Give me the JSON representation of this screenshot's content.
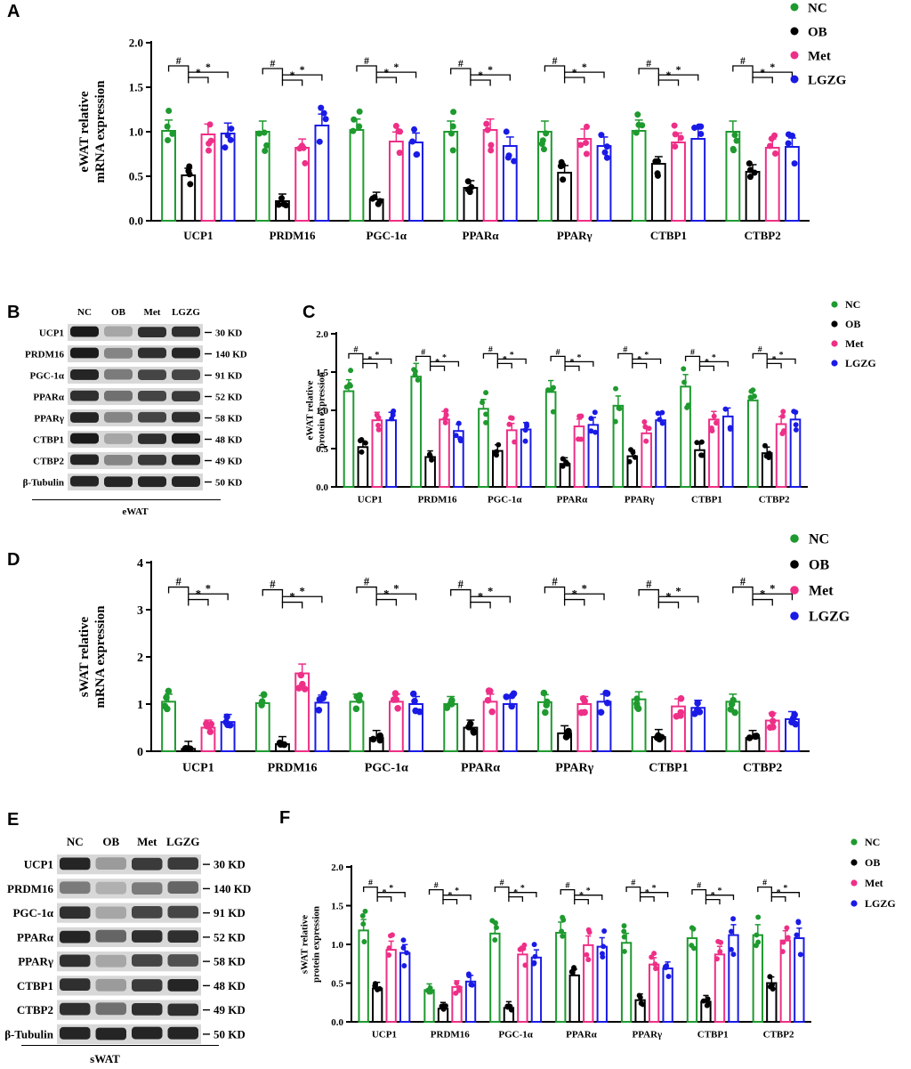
{
  "colors": {
    "NC": "#1e9a2f",
    "OB": "#000000",
    "Met": "#ee2f87",
    "LGZG": "#1a1ae6"
  },
  "legend": [
    "NC",
    "OB",
    "Met",
    "LGZG"
  ],
  "chart_data": [
    {
      "panel": "A",
      "type": "bar",
      "title": "",
      "ylabel": "eWAT relative mRNA expression",
      "ylim": [
        0,
        2.0
      ],
      "yticks": [
        "0.0",
        "0.5",
        "1.0",
        "1.5",
        "2.0"
      ],
      "categories": [
        "UCP1",
        "PRDM16",
        "PGC-1α",
        "PPARα",
        "PPARγ",
        "CTBP1",
        "CTBP2"
      ],
      "series": [
        {
          "name": "NC",
          "values": [
            1.01,
            1.0,
            1.02,
            1.0,
            1.0,
            1.01,
            1.0
          ]
        },
        {
          "name": "OB",
          "values": [
            0.51,
            0.22,
            0.24,
            0.37,
            0.54,
            0.64,
            0.55
          ]
        },
        {
          "name": "Met",
          "values": [
            0.97,
            0.82,
            0.89,
            1.02,
            0.92,
            0.88,
            0.82
          ]
        },
        {
          "name": "LGZG",
          "values": [
            0.98,
            1.07,
            0.88,
            0.84,
            0.84,
            0.92,
            0.83
          ]
        }
      ],
      "annotations": [
        "#",
        "*",
        "*"
      ]
    },
    {
      "panel": "C",
      "type": "bar",
      "title": "",
      "ylabel": "eWAT relative protein expression",
      "ylim": [
        0,
        2.0
      ],
      "yticks": [
        "0.0",
        "0.5",
        "1.0",
        "1.5",
        "2.0"
      ],
      "categories": [
        "UCP1",
        "PRDM16",
        "PGC-1α",
        "PPARα",
        "PPARγ",
        "CTBP1",
        "CTBP2"
      ],
      "series": [
        {
          "name": "NC",
          "values": [
            1.25,
            1.44,
            1.02,
            1.24,
            1.06,
            1.31,
            1.13
          ]
        },
        {
          "name": "OB",
          "values": [
            0.52,
            0.39,
            0.47,
            0.3,
            0.4,
            0.48,
            0.44
          ]
        },
        {
          "name": "Met",
          "values": [
            0.87,
            0.88,
            0.74,
            0.79,
            0.7,
            0.88,
            0.82
          ]
        },
        {
          "name": "LGZG",
          "values": [
            0.87,
            0.73,
            0.75,
            0.81,
            0.87,
            0.92,
            0.88
          ]
        }
      ],
      "annotations": [
        "#",
        "*",
        "*"
      ]
    },
    {
      "panel": "D",
      "type": "bar",
      "title": "",
      "ylabel": "sWAT relative mRNA expression",
      "ylim": [
        0,
        4
      ],
      "yticks": [
        "0",
        "1",
        "2",
        "3",
        "4"
      ],
      "categories": [
        "UCP1",
        "PRDM16",
        "PGC-1α",
        "PPARα",
        "PPARγ",
        "CTBP1",
        "CTBP2"
      ],
      "series": [
        {
          "name": "NC",
          "values": [
            1.05,
            1.02,
            1.05,
            1.0,
            1.04,
            1.1,
            1.05
          ]
        },
        {
          "name": "OB",
          "values": [
            0.05,
            0.15,
            0.28,
            0.5,
            0.38,
            0.3,
            0.28
          ]
        },
        {
          "name": "Met",
          "values": [
            0.5,
            1.65,
            1.05,
            1.05,
            1.0,
            0.95,
            0.65
          ]
        },
        {
          "name": "LGZG",
          "values": [
            0.62,
            1.03,
            1.0,
            1.0,
            1.05,
            0.92,
            0.68
          ]
        }
      ],
      "annotations": [
        "#",
        "*",
        "*"
      ]
    },
    {
      "panel": "F",
      "type": "bar",
      "title": "",
      "ylabel": "sWAT relative protein expression",
      "ylim": [
        0,
        2.0
      ],
      "yticks": [
        "0.0",
        "0.5",
        "1.0",
        "1.5",
        "2.0"
      ],
      "categories": [
        "UCP1",
        "PRDM16",
        "PGC-1α",
        "PPARα",
        "PPARγ",
        "CTBP1",
        "CTBP2"
      ],
      "series": [
        {
          "name": "NC",
          "values": [
            1.18,
            0.41,
            1.14,
            1.15,
            1.02,
            1.08,
            1.12
          ]
        },
        {
          "name": "OB",
          "values": [
            0.43,
            0.17,
            0.18,
            0.6,
            0.28,
            0.26,
            0.5
          ]
        },
        {
          "name": "Met",
          "values": [
            0.93,
            0.45,
            0.87,
            0.99,
            0.74,
            0.87,
            1.05
          ]
        },
        {
          "name": "LGZG",
          "values": [
            0.89,
            0.52,
            0.83,
            0.97,
            0.69,
            1.12,
            1.08
          ]
        }
      ],
      "annotations": [
        "#",
        "*",
        "*"
      ]
    }
  ],
  "blots": [
    {
      "panel": "B",
      "tissue": "eWAT",
      "lanes": [
        "NC",
        "OB",
        "Met",
        "LGZG"
      ],
      "rows": [
        {
          "protein": "UCP1",
          "size": "30 KD",
          "int": [
            0.95,
            0.3,
            0.85,
            0.85
          ]
        },
        {
          "protein": "PRDM16",
          "size": "140 KD",
          "int": [
            0.95,
            0.45,
            0.85,
            0.9
          ]
        },
        {
          "protein": "PGC-1α",
          "size": "91 KD",
          "int": [
            0.9,
            0.5,
            0.75,
            0.75
          ]
        },
        {
          "protein": "PPARα",
          "size": "52 KD",
          "int": [
            0.85,
            0.55,
            0.75,
            0.8
          ]
        },
        {
          "protein": "PPARγ",
          "size": "58 KD",
          "int": [
            0.9,
            0.45,
            0.75,
            0.85
          ]
        },
        {
          "protein": "CTBP1",
          "size": "48 KD",
          "int": [
            0.95,
            0.3,
            0.85,
            0.95
          ]
        },
        {
          "protein": "CTBP2",
          "size": "49 KD",
          "int": [
            0.9,
            0.45,
            0.8,
            0.9
          ]
        },
        {
          "protein": "β-Tubulin",
          "size": "50 KD",
          "int": [
            0.9,
            0.9,
            0.9,
            0.9
          ]
        }
      ]
    },
    {
      "panel": "E",
      "tissue": "sWAT",
      "lanes": [
        "NC",
        "OB",
        "Met",
        "LGZG"
      ],
      "rows": [
        {
          "protein": "UCP1",
          "size": "30 KD",
          "int": [
            0.9,
            0.35,
            0.8,
            0.8
          ]
        },
        {
          "protein": "PRDM16",
          "size": "140 KD",
          "int": [
            0.5,
            0.25,
            0.5,
            0.6
          ]
        },
        {
          "protein": "PGC-1α",
          "size": "91 KD",
          "int": [
            0.85,
            0.3,
            0.75,
            0.75
          ]
        },
        {
          "protein": "PPARα",
          "size": "52 KD",
          "int": [
            0.9,
            0.6,
            0.85,
            0.85
          ]
        },
        {
          "protein": "PPARγ",
          "size": "58 KD",
          "int": [
            0.85,
            0.3,
            0.75,
            0.7
          ]
        },
        {
          "protein": "CTBP1",
          "size": "48 KD",
          "int": [
            0.85,
            0.35,
            0.8,
            0.9
          ]
        },
        {
          "protein": "CTBP2",
          "size": "49 KD",
          "int": [
            0.85,
            0.55,
            0.85,
            0.85
          ]
        },
        {
          "protein": "β-Tubulin",
          "size": "50 KD",
          "int": [
            0.9,
            0.9,
            0.9,
            0.9
          ]
        }
      ]
    }
  ],
  "panel_labels": [
    "A",
    "B",
    "C",
    "D",
    "E",
    "F"
  ]
}
